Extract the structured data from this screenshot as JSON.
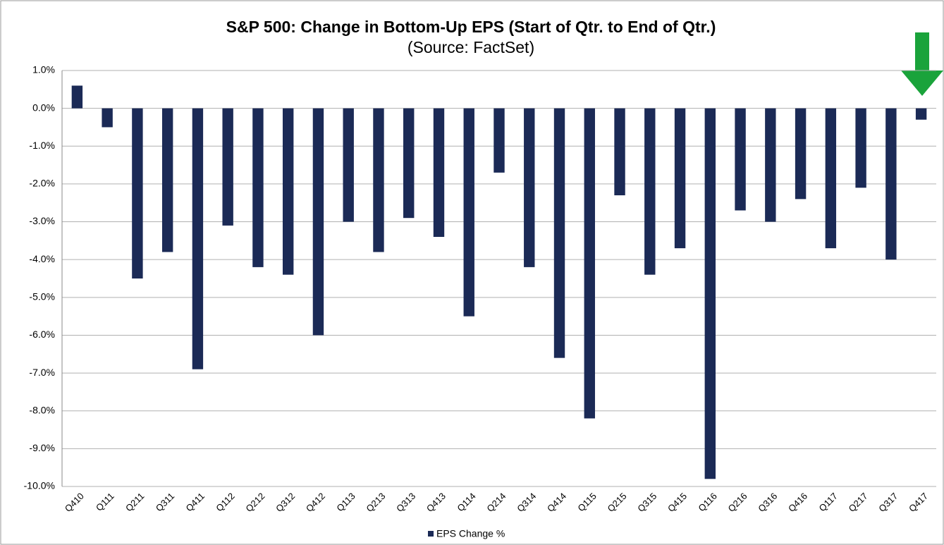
{
  "chart_data": {
    "type": "bar",
    "title": "S&P 500: Change in Bottom-Up EPS (Start of Qtr. to End of Qtr.)",
    "subtitle": "(Source: FactSet)",
    "categories": [
      "Q410",
      "Q111",
      "Q211",
      "Q311",
      "Q411",
      "Q112",
      "Q212",
      "Q312",
      "Q412",
      "Q113",
      "Q213",
      "Q313",
      "Q413",
      "Q114",
      "Q214",
      "Q314",
      "Q414",
      "Q115",
      "Q215",
      "Q315",
      "Q415",
      "Q116",
      "Q216",
      "Q316",
      "Q416",
      "Q117",
      "Q217",
      "Q317",
      "Q417"
    ],
    "series": [
      {
        "name": "EPS Change %",
        "color": "#1b2a56",
        "values": [
          0.6,
          -0.5,
          -4.5,
          -3.8,
          -6.9,
          -3.1,
          -4.2,
          -4.4,
          -6.0,
          -3.0,
          -3.8,
          -2.9,
          -3.4,
          -5.5,
          -1.7,
          -4.2,
          -6.6,
          -8.2,
          -2.3,
          -4.4,
          -3.7,
          -9.8,
          -2.7,
          -3.0,
          -2.4,
          -3.7,
          -2.1,
          -4.0,
          -0.3
        ]
      }
    ],
    "ylim": [
      -10,
      1
    ],
    "yticks": [
      {
        "value": 1,
        "label": "1.0%"
      },
      {
        "value": 0,
        "label": "0.0%"
      },
      {
        "value": -1,
        "label": "-1.0%"
      },
      {
        "value": -2,
        "label": "-2.0%"
      },
      {
        "value": -3,
        "label": "-3.0%"
      },
      {
        "value": -4,
        "label": "-4.0%"
      },
      {
        "value": -5,
        "label": "-5.0%"
      },
      {
        "value": -6,
        "label": "-6.0%"
      },
      {
        "value": -7,
        "label": "-7.0%"
      },
      {
        "value": -8,
        "label": "-8.0%"
      },
      {
        "value": -9,
        "label": "-9.0%"
      },
      {
        "value": -10,
        "label": "-10.0%"
      }
    ],
    "grid": true,
    "legend": "bottom"
  }
}
